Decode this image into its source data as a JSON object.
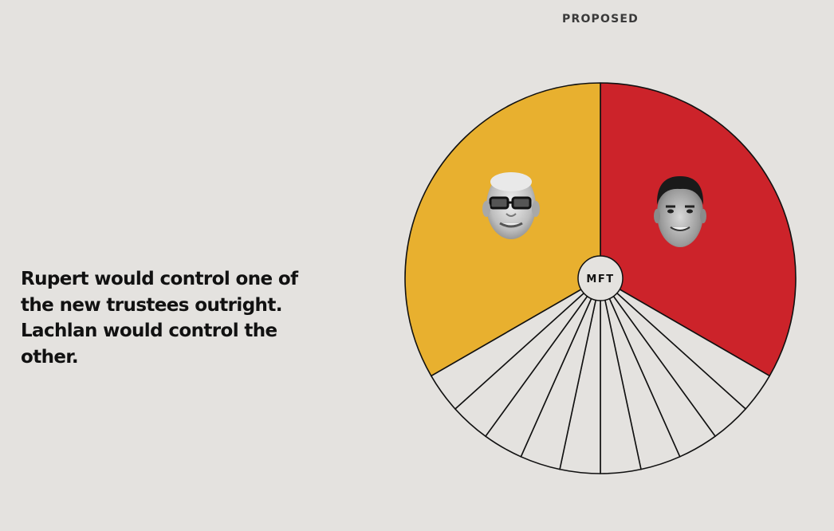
{
  "header": {
    "label": "PROPOSED"
  },
  "caption": {
    "text": "Rupert would control one of the new trustees outright. Lachlan would control the other."
  },
  "diagram": {
    "center_label": "MFT",
    "segments": [
      {
        "id": "rupert",
        "person": "Rupert",
        "fraction": 0.3333,
        "color": "#e8b02f"
      },
      {
        "id": "lachlan",
        "person": "Lachlan",
        "fraction": 0.3333,
        "color": "#cc232a"
      }
    ],
    "small_segments": {
      "count": 10,
      "color": "#e4e2df"
    },
    "stroke_color": "#111111"
  }
}
